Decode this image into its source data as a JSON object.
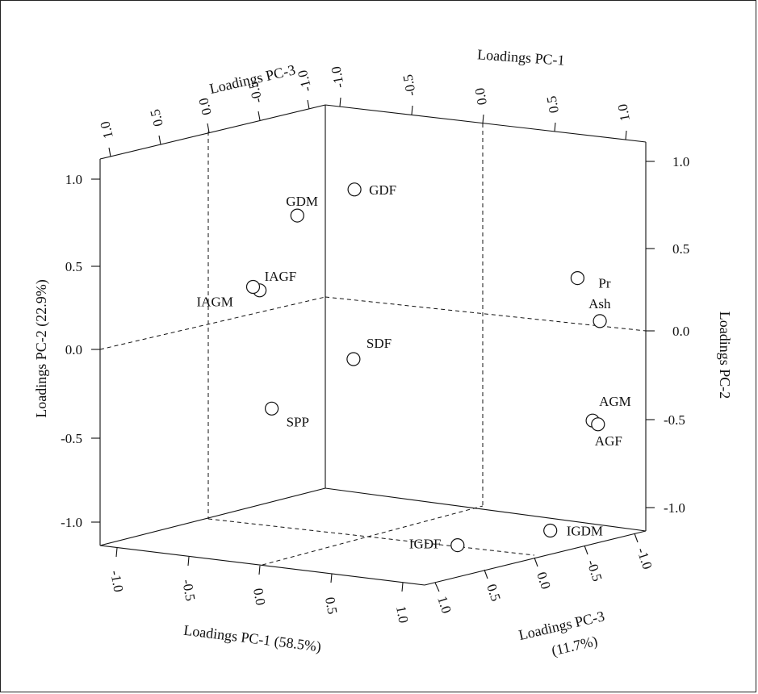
{
  "chart_data": {
    "type": "scatter",
    "axes": {
      "pc1": {
        "front_title": "Loadings PC-1 (58.5%)",
        "back_title": "Loadings PC-1",
        "ticks": [
          "-1.0",
          "-0.5",
          "0.0",
          "0.5",
          "1.0"
        ]
      },
      "pc2": {
        "left_title": "Loadings PC-2 (22.9%)",
        "right_title": "Loadings PC-2",
        "ticks": [
          "-1.0",
          "-0.5",
          "0.0",
          "0.5",
          "1.0"
        ]
      },
      "pc3": {
        "front_title_line1": "Loadings PC-3",
        "front_title_line2": "(11.7%)",
        "back_title": "Loadings PC-3",
        "ticks": [
          "1.0",
          "0.5",
          "0.0",
          "-0.5",
          "-1.0"
        ]
      }
    },
    "points": [
      {
        "name": "GDF",
        "label": "GDF",
        "pc1": 0.55,
        "pc2": 0.95,
        "pc3": 0.95
      },
      {
        "name": "GDM",
        "label": "GDM",
        "pc1": -0.4,
        "pc2": 0.6,
        "pc3": 0.1
      },
      {
        "name": "IAGF",
        "label": "IAGF",
        "pc1": -0.6,
        "pc2": 0.2,
        "pc3": 0.15
      },
      {
        "name": "IAGM",
        "label": "IAGM",
        "pc1": -0.62,
        "pc2": 0.22,
        "pc3": 0.18
      },
      {
        "name": "SDF",
        "label": "SDF",
        "pc1": 0.3,
        "pc2": 0.0,
        "pc3": 0.6
      },
      {
        "name": "SPP",
        "label": "SPP",
        "pc1": -0.35,
        "pc2": -0.35,
        "pc3": 0.4
      },
      {
        "name": "Pr",
        "label": "Pr",
        "pc1": 1.0,
        "pc2": 0.35,
        "pc3": -0.4
      },
      {
        "name": "Ash",
        "label": "Ash",
        "pc1": 1.0,
        "pc2": 0.1,
        "pc3": -0.6
      },
      {
        "name": "AGM",
        "label": "AGM",
        "pc1": 0.85,
        "pc2": -0.45,
        "pc3": -0.75
      },
      {
        "name": "AGF",
        "label": "AGF",
        "pc1": 0.87,
        "pc2": -0.47,
        "pc3": -0.77
      },
      {
        "name": "IGDM",
        "label": "IGDM",
        "pc1": 0.9,
        "pc2": -0.95,
        "pc3": -0.3
      },
      {
        "name": "IGDF",
        "label": "IGDF",
        "pc1": 0.6,
        "pc2": -1.0,
        "pc3": 0.1
      }
    ],
    "grid": false,
    "legend": false
  }
}
